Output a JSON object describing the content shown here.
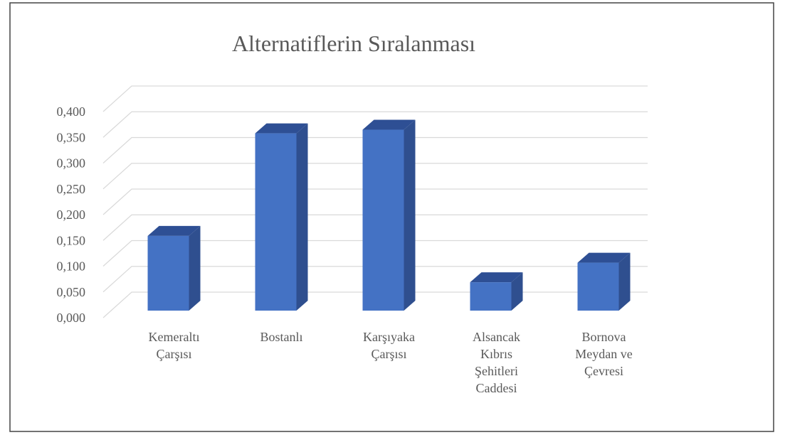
{
  "chart_data": {
    "type": "bar3d",
    "title": "Alternatiflerin Sıralanması",
    "categories": [
      "Kemeraltı Çarşısı",
      "Bostanlı",
      "Karşıyaka Çarşısı",
      "Alsancak Kıbrıs Şehitleri Caddesi",
      "Bornova Meydan ve Çevresi"
    ],
    "values": [
      0.145,
      0.344,
      0.351,
      0.055,
      0.093
    ],
    "color": "#4472c4",
    "ylim": [
      0,
      0.4
    ],
    "yticks": [
      {
        "value": 0,
        "label": "0,000"
      },
      {
        "value": 0.05,
        "label": "0,050"
      },
      {
        "value": 0.1,
        "label": "0,100"
      },
      {
        "value": 0.15,
        "label": "0,150"
      },
      {
        "value": 0.2,
        "label": "0,200"
      },
      {
        "value": 0.25,
        "label": "0,250"
      },
      {
        "value": 0.3,
        "label": "0,300"
      },
      {
        "value": 0.35,
        "label": "0,350"
      },
      {
        "value": 0.4,
        "label": "0,400"
      }
    ],
    "grid": true
  }
}
